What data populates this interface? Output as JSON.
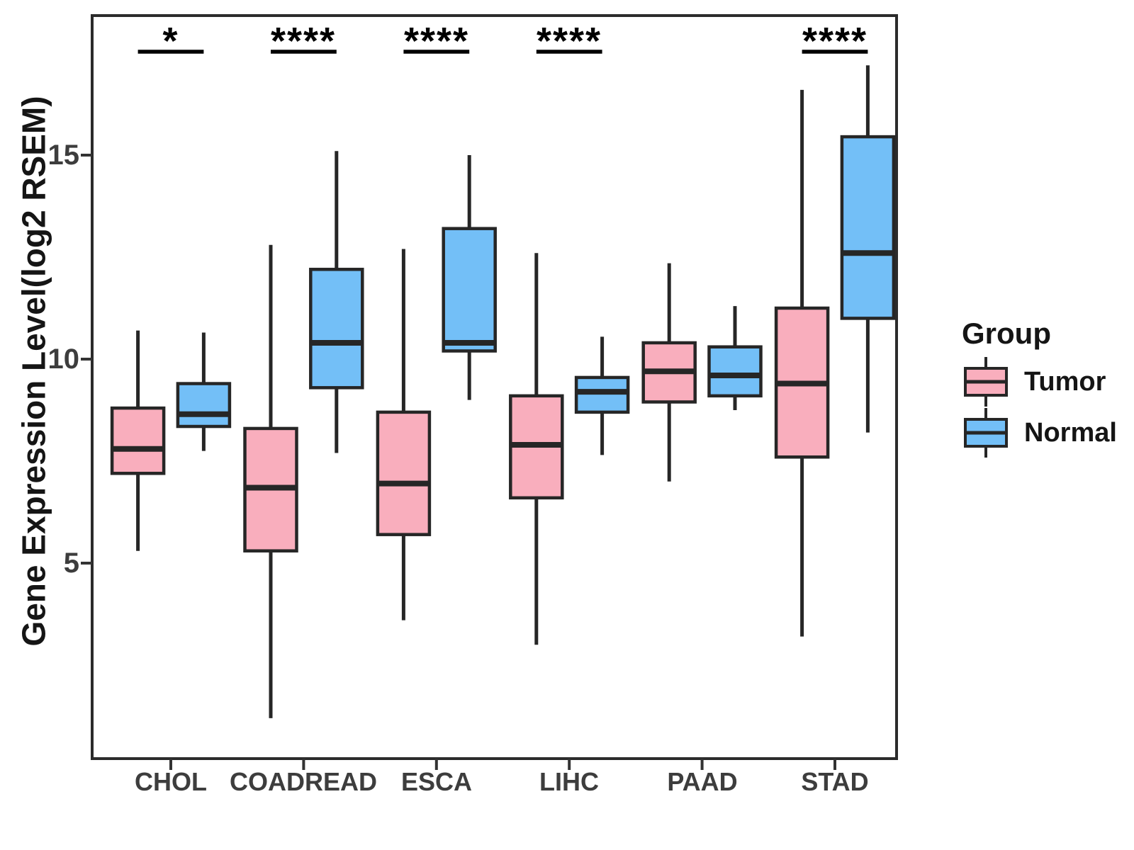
{
  "chart_data": {
    "type": "boxplot",
    "title": "",
    "xlabel": "",
    "ylabel": "Gene Expression Level(log2 RSEM)",
    "ylim": [
      0.2,
      18.4
    ],
    "yticks": [
      15,
      10,
      5
    ],
    "grid": false,
    "categories": [
      "CHOL",
      "COADREAD",
      "ESCA",
      "LIHC",
      "PAAD",
      "STAD"
    ],
    "legend": {
      "title": "Group",
      "position": "right",
      "entries": [
        {
          "label": "Tumor",
          "color": "#F9AEBD"
        },
        {
          "label": "Normal",
          "color": "#73BFF7"
        }
      ]
    },
    "style": {
      "box_stroke": "#262626",
      "panel_stroke": "#2b2b2b",
      "tick_stroke": "#333333"
    },
    "series": [
      {
        "name": "Tumor",
        "color": "#F9AEBD",
        "boxes": [
          {
            "category": "CHOL",
            "whisker_low": 5.3,
            "q1": 7.2,
            "median": 7.8,
            "q3": 8.8,
            "whisker_high": 10.7
          },
          {
            "category": "COADREAD",
            "whisker_low": 1.2,
            "q1": 5.3,
            "median": 6.85,
            "q3": 8.3,
            "whisker_high": 12.8
          },
          {
            "category": "ESCA",
            "whisker_low": 3.6,
            "q1": 5.7,
            "median": 6.95,
            "q3": 8.7,
            "whisker_high": 12.7
          },
          {
            "category": "LIHC",
            "whisker_low": 3.0,
            "q1": 6.6,
            "median": 7.9,
            "q3": 9.1,
            "whisker_high": 12.6
          },
          {
            "category": "PAAD",
            "whisker_low": 7.0,
            "q1": 8.95,
            "median": 9.7,
            "q3": 10.4,
            "whisker_high": 12.35
          },
          {
            "category": "STAD",
            "whisker_low": 3.2,
            "q1": 7.6,
            "median": 9.4,
            "q3": 11.25,
            "whisker_high": 16.6
          }
        ]
      },
      {
        "name": "Normal",
        "color": "#73BFF7",
        "boxes": [
          {
            "category": "CHOL",
            "whisker_low": 7.75,
            "q1": 8.35,
            "median": 8.65,
            "q3": 9.4,
            "whisker_high": 10.65
          },
          {
            "category": "COADREAD",
            "whisker_low": 7.7,
            "q1": 9.3,
            "median": 10.4,
            "q3": 12.2,
            "whisker_high": 15.1
          },
          {
            "category": "ESCA",
            "whisker_low": 9.0,
            "q1": 10.2,
            "median": 10.4,
            "q3": 13.2,
            "whisker_high": 15.0
          },
          {
            "category": "LIHC",
            "whisker_low": 7.65,
            "q1": 8.7,
            "median": 9.2,
            "q3": 9.55,
            "whisker_high": 10.55
          },
          {
            "category": "PAAD",
            "whisker_low": 8.75,
            "q1": 9.1,
            "median": 9.6,
            "q3": 10.3,
            "whisker_high": 11.3
          },
          {
            "category": "STAD",
            "whisker_low": 8.2,
            "q1": 11.0,
            "median": 12.6,
            "q3": 15.45,
            "whisker_high": 17.2
          }
        ]
      }
    ],
    "significance": [
      {
        "category": "CHOL",
        "label": "*"
      },
      {
        "category": "COADREAD",
        "label": "****"
      },
      {
        "category": "ESCA",
        "label": "****"
      },
      {
        "category": "LIHC",
        "label": "****"
      },
      {
        "category": "PAAD",
        "label": null
      },
      {
        "category": "STAD",
        "label": "****"
      }
    ]
  }
}
